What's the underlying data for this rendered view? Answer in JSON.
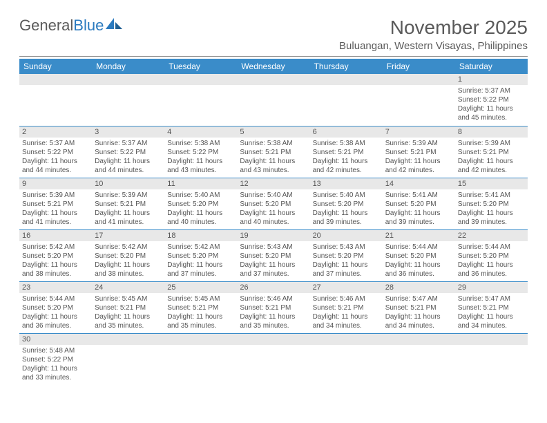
{
  "brand": {
    "part1": "General",
    "part2": "Blue"
  },
  "title": "November 2025",
  "location": "Buluangan, Western Visayas, Philippines",
  "colors": {
    "header_bg": "#3a8cc9",
    "header_text": "#ffffff",
    "daynum_bg": "#e8e8e8",
    "text": "#555555",
    "row_border": "#3a8cc9",
    "logo_gray": "#5a5a5a",
    "logo_blue": "#2a7abf"
  },
  "day_headers": [
    "Sunday",
    "Monday",
    "Tuesday",
    "Wednesday",
    "Thursday",
    "Friday",
    "Saturday"
  ],
  "weeks": [
    [
      {
        "n": "",
        "sr": "",
        "ss": "",
        "dl": ""
      },
      {
        "n": "",
        "sr": "",
        "ss": "",
        "dl": ""
      },
      {
        "n": "",
        "sr": "",
        "ss": "",
        "dl": ""
      },
      {
        "n": "",
        "sr": "",
        "ss": "",
        "dl": ""
      },
      {
        "n": "",
        "sr": "",
        "ss": "",
        "dl": ""
      },
      {
        "n": "",
        "sr": "",
        "ss": "",
        "dl": ""
      },
      {
        "n": "1",
        "sr": "Sunrise: 5:37 AM",
        "ss": "Sunset: 5:22 PM",
        "dl": "Daylight: 11 hours and 45 minutes."
      }
    ],
    [
      {
        "n": "2",
        "sr": "Sunrise: 5:37 AM",
        "ss": "Sunset: 5:22 PM",
        "dl": "Daylight: 11 hours and 44 minutes."
      },
      {
        "n": "3",
        "sr": "Sunrise: 5:37 AM",
        "ss": "Sunset: 5:22 PM",
        "dl": "Daylight: 11 hours and 44 minutes."
      },
      {
        "n": "4",
        "sr": "Sunrise: 5:38 AM",
        "ss": "Sunset: 5:22 PM",
        "dl": "Daylight: 11 hours and 43 minutes."
      },
      {
        "n": "5",
        "sr": "Sunrise: 5:38 AM",
        "ss": "Sunset: 5:21 PM",
        "dl": "Daylight: 11 hours and 43 minutes."
      },
      {
        "n": "6",
        "sr": "Sunrise: 5:38 AM",
        "ss": "Sunset: 5:21 PM",
        "dl": "Daylight: 11 hours and 42 minutes."
      },
      {
        "n": "7",
        "sr": "Sunrise: 5:39 AM",
        "ss": "Sunset: 5:21 PM",
        "dl": "Daylight: 11 hours and 42 minutes."
      },
      {
        "n": "8",
        "sr": "Sunrise: 5:39 AM",
        "ss": "Sunset: 5:21 PM",
        "dl": "Daylight: 11 hours and 42 minutes."
      }
    ],
    [
      {
        "n": "9",
        "sr": "Sunrise: 5:39 AM",
        "ss": "Sunset: 5:21 PM",
        "dl": "Daylight: 11 hours and 41 minutes."
      },
      {
        "n": "10",
        "sr": "Sunrise: 5:39 AM",
        "ss": "Sunset: 5:21 PM",
        "dl": "Daylight: 11 hours and 41 minutes."
      },
      {
        "n": "11",
        "sr": "Sunrise: 5:40 AM",
        "ss": "Sunset: 5:20 PM",
        "dl": "Daylight: 11 hours and 40 minutes."
      },
      {
        "n": "12",
        "sr": "Sunrise: 5:40 AM",
        "ss": "Sunset: 5:20 PM",
        "dl": "Daylight: 11 hours and 40 minutes."
      },
      {
        "n": "13",
        "sr": "Sunrise: 5:40 AM",
        "ss": "Sunset: 5:20 PM",
        "dl": "Daylight: 11 hours and 39 minutes."
      },
      {
        "n": "14",
        "sr": "Sunrise: 5:41 AM",
        "ss": "Sunset: 5:20 PM",
        "dl": "Daylight: 11 hours and 39 minutes."
      },
      {
        "n": "15",
        "sr": "Sunrise: 5:41 AM",
        "ss": "Sunset: 5:20 PM",
        "dl": "Daylight: 11 hours and 39 minutes."
      }
    ],
    [
      {
        "n": "16",
        "sr": "Sunrise: 5:42 AM",
        "ss": "Sunset: 5:20 PM",
        "dl": "Daylight: 11 hours and 38 minutes."
      },
      {
        "n": "17",
        "sr": "Sunrise: 5:42 AM",
        "ss": "Sunset: 5:20 PM",
        "dl": "Daylight: 11 hours and 38 minutes."
      },
      {
        "n": "18",
        "sr": "Sunrise: 5:42 AM",
        "ss": "Sunset: 5:20 PM",
        "dl": "Daylight: 11 hours and 37 minutes."
      },
      {
        "n": "19",
        "sr": "Sunrise: 5:43 AM",
        "ss": "Sunset: 5:20 PM",
        "dl": "Daylight: 11 hours and 37 minutes."
      },
      {
        "n": "20",
        "sr": "Sunrise: 5:43 AM",
        "ss": "Sunset: 5:20 PM",
        "dl": "Daylight: 11 hours and 37 minutes."
      },
      {
        "n": "21",
        "sr": "Sunrise: 5:44 AM",
        "ss": "Sunset: 5:20 PM",
        "dl": "Daylight: 11 hours and 36 minutes."
      },
      {
        "n": "22",
        "sr": "Sunrise: 5:44 AM",
        "ss": "Sunset: 5:20 PM",
        "dl": "Daylight: 11 hours and 36 minutes."
      }
    ],
    [
      {
        "n": "23",
        "sr": "Sunrise: 5:44 AM",
        "ss": "Sunset: 5:20 PM",
        "dl": "Daylight: 11 hours and 36 minutes."
      },
      {
        "n": "24",
        "sr": "Sunrise: 5:45 AM",
        "ss": "Sunset: 5:21 PM",
        "dl": "Daylight: 11 hours and 35 minutes."
      },
      {
        "n": "25",
        "sr": "Sunrise: 5:45 AM",
        "ss": "Sunset: 5:21 PM",
        "dl": "Daylight: 11 hours and 35 minutes."
      },
      {
        "n": "26",
        "sr": "Sunrise: 5:46 AM",
        "ss": "Sunset: 5:21 PM",
        "dl": "Daylight: 11 hours and 35 minutes."
      },
      {
        "n": "27",
        "sr": "Sunrise: 5:46 AM",
        "ss": "Sunset: 5:21 PM",
        "dl": "Daylight: 11 hours and 34 minutes."
      },
      {
        "n": "28",
        "sr": "Sunrise: 5:47 AM",
        "ss": "Sunset: 5:21 PM",
        "dl": "Daylight: 11 hours and 34 minutes."
      },
      {
        "n": "29",
        "sr": "Sunrise: 5:47 AM",
        "ss": "Sunset: 5:21 PM",
        "dl": "Daylight: 11 hours and 34 minutes."
      }
    ],
    [
      {
        "n": "30",
        "sr": "Sunrise: 5:48 AM",
        "ss": "Sunset: 5:22 PM",
        "dl": "Daylight: 11 hours and 33 minutes."
      },
      {
        "n": "",
        "sr": "",
        "ss": "",
        "dl": ""
      },
      {
        "n": "",
        "sr": "",
        "ss": "",
        "dl": ""
      },
      {
        "n": "",
        "sr": "",
        "ss": "",
        "dl": ""
      },
      {
        "n": "",
        "sr": "",
        "ss": "",
        "dl": ""
      },
      {
        "n": "",
        "sr": "",
        "ss": "",
        "dl": ""
      },
      {
        "n": "",
        "sr": "",
        "ss": "",
        "dl": ""
      }
    ]
  ]
}
